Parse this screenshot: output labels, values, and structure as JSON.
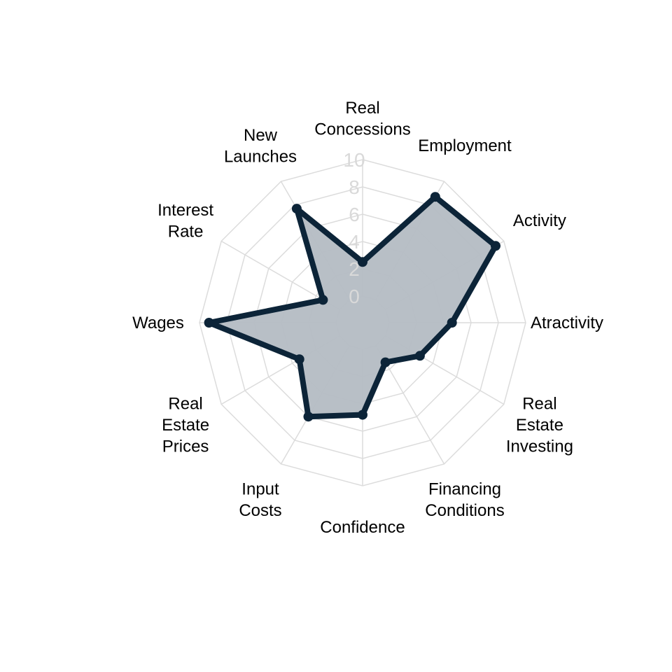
{
  "chart_data": {
    "type": "radar",
    "title": "",
    "categories": [
      "Real Concessions",
      "Employment",
      "Activity",
      "Atractivity",
      "Real Estate Investing",
      "Financing Conditions",
      "Confidence",
      "Input Costs",
      "Real Estate Prices",
      "Wages",
      "Interest Rate",
      "New Launches"
    ],
    "category_label_lines": [
      [
        "Real",
        "Concessions"
      ],
      [
        "Employment"
      ],
      [
        "Activity"
      ],
      [
        "Atractivity"
      ],
      [
        "Real",
        "Estate",
        "Investing"
      ],
      [
        "Financing",
        "Conditions"
      ],
      [
        "Confidence"
      ],
      [
        "Input",
        "Costs"
      ],
      [
        "Real",
        "Estate",
        "Prices"
      ],
      [
        "Wages"
      ],
      [
        "Interest",
        "Rate"
      ],
      [
        "New",
        "Launches"
      ]
    ],
    "series": [
      {
        "values": [
          2.5,
          8.7,
          9.3,
          4.6,
          2.9,
          1.4,
          4.8,
          6.0,
          3.4,
          9.3,
          1.4,
          7.7
        ]
      }
    ],
    "radial_ticks": [
      "0",
      "2",
      "4",
      "6",
      "8",
      "10"
    ],
    "rlim": [
      0,
      10
    ],
    "grid": true,
    "colors": {
      "line": "#0c2438",
      "fill": "#b4bcc3",
      "grid": "#dcdcdc",
      "tick_text": "#d9d9d9"
    }
  }
}
